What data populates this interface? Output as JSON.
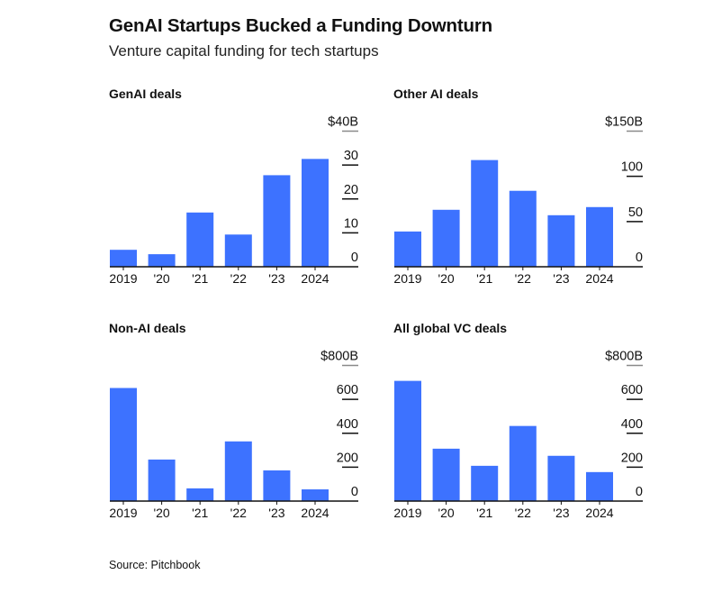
{
  "header": {
    "title": "GenAI Startups Bucked a Funding Downturn",
    "subtitle": "Venture capital funding for tech startups"
  },
  "footer": {
    "source": "Source: Pitchbook"
  },
  "colors": {
    "bar": "#3d72ff",
    "axis": "#111111",
    "top_grid": "#8a8a8a",
    "text": "#111111"
  },
  "chart_data": [
    {
      "type": "bar",
      "title": "GenAI deals",
      "categories": [
        "2019",
        "'20",
        "'21",
        "'22",
        "'23",
        "2024"
      ],
      "values": [
        5,
        3.7,
        16,
        9.5,
        27,
        31.8
      ],
      "ylim": [
        0,
        40
      ],
      "yticks": [
        0,
        10,
        20,
        30,
        40
      ],
      "ytick_labels": [
        "0",
        "10",
        "20",
        "30",
        "$40B"
      ],
      "xlabel": "",
      "ylabel": "",
      "y_axis_side": "right",
      "grid": true
    },
    {
      "type": "bar",
      "title": "Other AI deals",
      "categories": [
        "2019",
        "'20",
        "'21",
        "'22",
        "'23",
        "2024"
      ],
      "values": [
        39,
        63,
        118,
        84,
        57,
        66
      ],
      "ylim": [
        0,
        150
      ],
      "yticks": [
        0,
        50,
        100,
        150
      ],
      "ytick_labels": [
        "0",
        "50",
        "100",
        "$150B"
      ],
      "xlabel": "",
      "ylabel": "",
      "y_axis_side": "right",
      "grid": true
    },
    {
      "type": "bar",
      "title": "Non-AI deals",
      "categories": [
        "2019",
        "'20",
        "'21",
        "'22",
        "'23",
        "2024"
      ],
      "values": [
        667,
        245,
        75,
        352,
        181,
        69
      ],
      "ylim": [
        0,
        800
      ],
      "yticks": [
        0,
        200,
        400,
        600,
        800
      ],
      "ytick_labels": [
        "0",
        "200",
        "400",
        "600",
        "$800B"
      ],
      "xlabel": "",
      "ylabel": "",
      "y_axis_side": "right",
      "grid": true
    },
    {
      "type": "bar",
      "title": "All global VC deals",
      "categories": [
        "2019",
        "'20",
        "'21",
        "'22",
        "'23",
        "2024"
      ],
      "values": [
        709,
        309,
        208,
        443,
        267,
        171
      ],
      "ylim": [
        0,
        800
      ],
      "yticks": [
        0,
        200,
        400,
        600,
        800
      ],
      "ytick_labels": [
        "0",
        "200",
        "400",
        "600",
        "$800B"
      ],
      "xlabel": "",
      "ylabel": "",
      "y_axis_side": "right",
      "grid": true
    }
  ]
}
